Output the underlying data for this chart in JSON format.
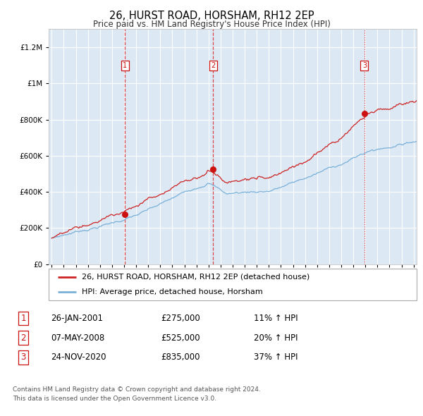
{
  "title": "26, HURST ROAD, HORSHAM, RH12 2EP",
  "subtitle": "Price paid vs. HM Land Registry's House Price Index (HPI)",
  "ylim": [
    0,
    1300000
  ],
  "yticks": [
    0,
    200000,
    400000,
    600000,
    800000,
    1000000,
    1200000
  ],
  "ytick_labels": [
    "£0",
    "£200K",
    "£400K",
    "£600K",
    "£800K",
    "£1M",
    "£1.2M"
  ],
  "xticks": [
    1995,
    1996,
    1997,
    1998,
    1999,
    2000,
    2001,
    2002,
    2003,
    2004,
    2005,
    2006,
    2007,
    2008,
    2009,
    2010,
    2011,
    2012,
    2013,
    2014,
    2015,
    2016,
    2017,
    2018,
    2019,
    2020,
    2021,
    2022,
    2023,
    2024,
    2025
  ],
  "background_color": "#dce9f5",
  "grid_color": "#ffffff",
  "hpi_line_color": "#7ab0d8",
  "price_line_color": "#cc2222",
  "sale1_year": 2001.08,
  "sale1_price": 275000,
  "sale1_label": "1",
  "sale2_year": 2008.37,
  "sale2_price": 525000,
  "sale2_label": "2",
  "sale3_year": 2020.92,
  "sale3_price": 835000,
  "sale3_label": "3",
  "legend_price_label": "26, HURST ROAD, HORSHAM, RH12 2EP (detached house)",
  "legend_hpi_label": "HPI: Average price, detached house, Horsham",
  "footer1": "Contains HM Land Registry data © Crown copyright and database right 2024.",
  "footer2": "This data is licensed under the Open Government Licence v3.0.",
  "table_rows": [
    [
      "1",
      "26-JAN-2001",
      "£275,000",
      "11% ↑ HPI"
    ],
    [
      "2",
      "07-MAY-2008",
      "£525,000",
      "20% ↑ HPI"
    ],
    [
      "3",
      "24-NOV-2020",
      "£835,000",
      "37% ↑ HPI"
    ]
  ]
}
